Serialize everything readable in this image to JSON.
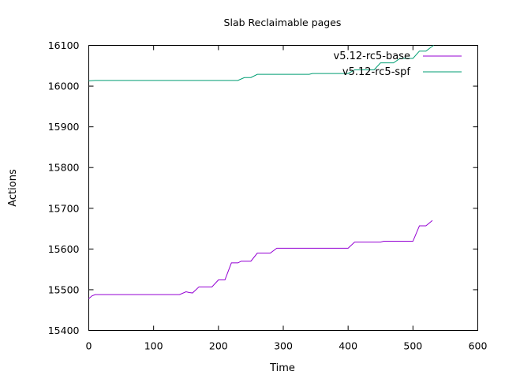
{
  "chart_data": {
    "type": "line",
    "title": "Slab Reclaimable pages",
    "xlabel": "Time",
    "ylabel": "Actions",
    "xlim": [
      0,
      600
    ],
    "ylim": [
      15400,
      16100
    ],
    "xticks": [
      0,
      100,
      200,
      300,
      400,
      500,
      600
    ],
    "yticks": [
      15400,
      15500,
      15600,
      15700,
      15800,
      15900,
      16000,
      16100
    ],
    "xtick_labels": [
      "0",
      "100",
      "200",
      "300",
      "400",
      "500",
      "600"
    ],
    "ytick_labels": [
      "15400",
      "15500",
      "15600",
      "15700",
      "15800",
      "15900",
      "16000",
      "16100"
    ],
    "grid": false,
    "legend_position": "top-right",
    "series": [
      {
        "name": "v5.12-rc5-base",
        "color": "#9400d3",
        "points": [
          [
            0,
            15478
          ],
          [
            5,
            15485
          ],
          [
            10,
            15488
          ],
          [
            140,
            15488
          ],
          [
            150,
            15495
          ],
          [
            155,
            15493
          ],
          [
            160,
            15492
          ],
          [
            170,
            15507
          ],
          [
            190,
            15507
          ],
          [
            200,
            15524
          ],
          [
            210,
            15524
          ],
          [
            220,
            15566
          ],
          [
            230,
            15566
          ],
          [
            235,
            15570
          ],
          [
            250,
            15570
          ],
          [
            260,
            15590
          ],
          [
            280,
            15590
          ],
          [
            290,
            15602
          ],
          [
            400,
            15602
          ],
          [
            410,
            15617
          ],
          [
            450,
            15617
          ],
          [
            455,
            15619
          ],
          [
            500,
            15619
          ],
          [
            510,
            15657
          ],
          [
            520,
            15657
          ],
          [
            530,
            15670
          ]
        ]
      },
      {
        "name": "v5.12-rc5-spf",
        "color": "#009e73",
        "points": [
          [
            0,
            16013
          ],
          [
            10,
            16014
          ],
          [
            230,
            16014
          ],
          [
            240,
            16021
          ],
          [
            250,
            16021
          ],
          [
            260,
            16029
          ],
          [
            340,
            16029
          ],
          [
            345,
            16031
          ],
          [
            400,
            16031
          ],
          [
            410,
            16040
          ],
          [
            440,
            16040
          ],
          [
            450,
            16057
          ],
          [
            470,
            16057
          ],
          [
            480,
            16068
          ],
          [
            500,
            16068
          ],
          [
            510,
            16086
          ],
          [
            520,
            16086
          ],
          [
            530,
            16098
          ],
          [
            532,
            16100
          ]
        ]
      }
    ]
  }
}
